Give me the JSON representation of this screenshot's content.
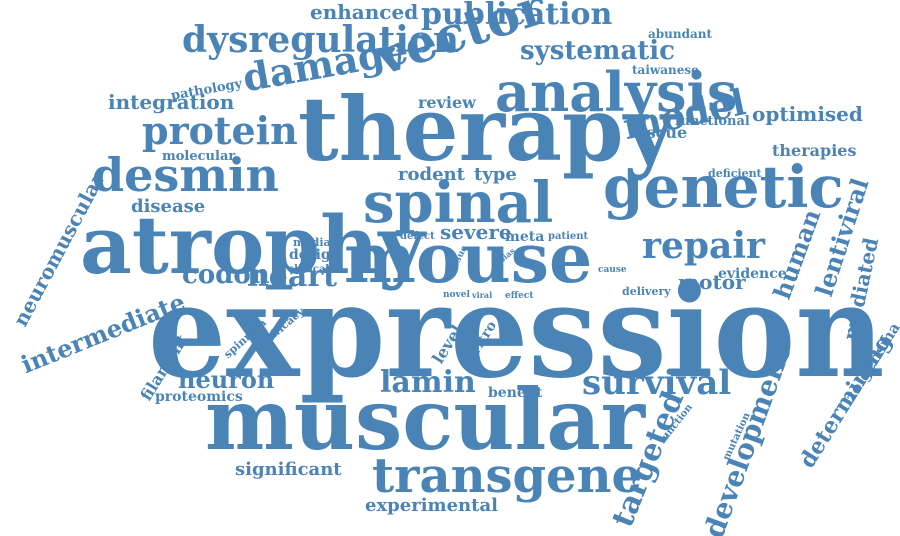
{
  "colors": {
    "word": "#4a83b5",
    "background": "#ffffff"
  },
  "words": [
    {
      "text": "expression"
    },
    {
      "text": "muscular"
    },
    {
      "text": "therapy"
    },
    {
      "text": "atrophy"
    },
    {
      "text": "mouse"
    },
    {
      "text": "spinal"
    },
    {
      "text": "genetic"
    },
    {
      "text": "analysis"
    },
    {
      "text": "vector"
    },
    {
      "text": "transgene"
    },
    {
      "text": "desmin"
    },
    {
      "text": "protein"
    },
    {
      "text": "damage"
    },
    {
      "text": "dysregulation"
    },
    {
      "text": "model"
    },
    {
      "text": "repair"
    },
    {
      "text": "survival"
    },
    {
      "text": "lamin"
    },
    {
      "text": "publication"
    },
    {
      "text": "heart"
    },
    {
      "text": "codon"
    },
    {
      "text": "intermediate"
    },
    {
      "text": "targeted"
    },
    {
      "text": "neuron"
    },
    {
      "text": "development"
    },
    {
      "text": "systematic"
    },
    {
      "text": "human"
    },
    {
      "text": "lentiviral"
    },
    {
      "text": "neuromuscular"
    },
    {
      "text": "determining"
    },
    {
      "text": "enhanced"
    },
    {
      "text": "integration"
    },
    {
      "text": "optimised"
    },
    {
      "text": "motor"
    },
    {
      "text": "severe"
    },
    {
      "text": "mediated"
    },
    {
      "text": "experimental"
    },
    {
      "text": "significant"
    },
    {
      "text": "rodent"
    },
    {
      "text": "type"
    },
    {
      "text": "disease"
    },
    {
      "text": "therapies"
    },
    {
      "text": "review"
    },
    {
      "text": "rescue"
    },
    {
      "text": "zolgensma"
    },
    {
      "text": "filament"
    },
    {
      "text": "evidence"
    },
    {
      "text": "proteomics"
    },
    {
      "text": "benefit"
    },
    {
      "text": "design"
    },
    {
      "text": "molecular"
    },
    {
      "text": "pathology"
    },
    {
      "text": "abundant"
    },
    {
      "text": "taiwanese"
    },
    {
      "text": "functional"
    },
    {
      "text": "deficient"
    },
    {
      "text": "level"
    },
    {
      "text": "vitro"
    },
    {
      "text": "meta"
    },
    {
      "text": "patient"
    },
    {
      "text": "median"
    },
    {
      "text": "clinical"
    },
    {
      "text": "defect"
    },
    {
      "text": "delivery"
    },
    {
      "text": "spinraza"
    },
    {
      "text": "efficacy"
    },
    {
      "text": "function"
    },
    {
      "text": "mutation"
    },
    {
      "text": "tissue"
    },
    {
      "text": "bias"
    },
    {
      "text": "cause"
    },
    {
      "text": "novel"
    },
    {
      "text": "viral"
    },
    {
      "text": "effect"
    }
  ]
}
